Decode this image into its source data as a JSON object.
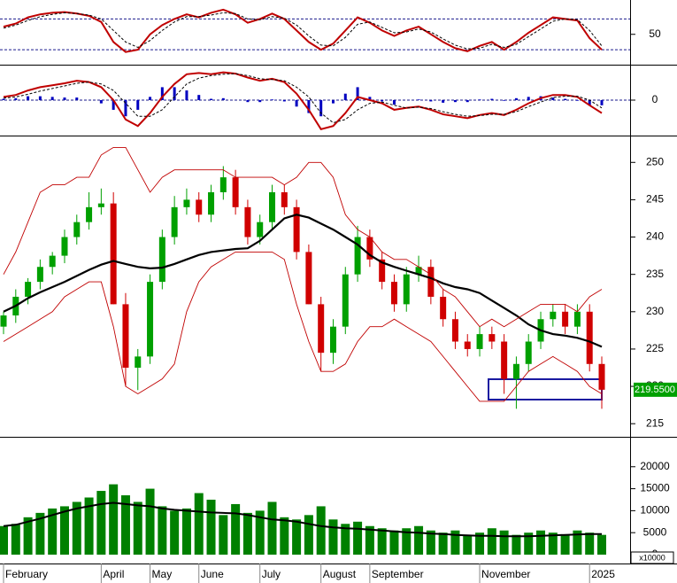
{
  "chart_data": [
    {
      "type": "line",
      "ylim": [
        14,
        90
      ],
      "yticks": [
        50
      ],
      "levels": [
        30,
        70
      ],
      "level_color": "#1a1a8c",
      "series": [
        {
          "color": "#c00000",
          "width": 2,
          "dash": false,
          "values": [
            60,
            64,
            72,
            76,
            78,
            79,
            77,
            74,
            66,
            40,
            27,
            30,
            50,
            62,
            70,
            76,
            72,
            78,
            82,
            76,
            65,
            70,
            77,
            70,
            55,
            40,
            30,
            38,
            55,
            72,
            65,
            55,
            48,
            55,
            60,
            50,
            40,
            32,
            28,
            35,
            40,
            30,
            40,
            52,
            62,
            72,
            70,
            68,
            45,
            30
          ]
        },
        {
          "color": "#000000",
          "width": 1,
          "dash": true,
          "values": [
            58,
            62,
            68,
            73,
            76,
            78,
            77,
            75,
            70,
            55,
            40,
            33,
            42,
            55,
            66,
            73,
            73,
            75,
            78,
            77,
            70,
            69,
            73,
            71,
            62,
            48,
            36,
            35,
            46,
            63,
            66,
            59,
            52,
            53,
            57,
            53,
            44,
            36,
            31,
            32,
            37,
            33,
            37,
            47,
            57,
            67,
            70,
            69,
            55,
            35
          ]
        }
      ]
    },
    {
      "type": "line",
      "ylim": [
        -4.8,
        4.8
      ],
      "yticks": [
        0
      ],
      "grid": true,
      "series": [
        {
          "color": "#0000c0",
          "width": 3,
          "bar": true,
          "values": [
            0.2,
            0.3,
            0.6,
            0.6,
            0.5,
            0.4,
            0.4,
            0,
            -0.5,
            -1.5,
            -2.5,
            -1.5,
            0.5,
            2,
            2,
            1.5,
            0.8,
            0.2,
            0.3,
            0,
            -0.3,
            -0.3,
            0.1,
            -0.2,
            -1,
            -2,
            -2.5,
            -0.5,
            1,
            2,
            0.5,
            -0.2,
            -0.7,
            0,
            0.1,
            -0.2,
            -0.4,
            -0.3,
            -0.3,
            0.1,
            0.2,
            -0.1,
            0.3,
            0.5,
            0.6,
            0.4,
            0.2,
            -0.1,
            -0.8,
            -0.8
          ]
        },
        {
          "color": "#c00000",
          "width": 2,
          "dash": false,
          "values": [
            0.5,
            0.8,
            1.5,
            2,
            2.3,
            2.6,
            3,
            2.8,
            2,
            0,
            -3,
            -4,
            -2,
            0.5,
            2.5,
            4,
            4.2,
            4,
            4.3,
            4.1,
            3.5,
            3,
            3.3,
            2.8,
            1,
            -1.5,
            -4.5,
            -4,
            -2,
            0.5,
            0,
            -0.5,
            -1.5,
            -1.2,
            -1,
            -1.5,
            -2.2,
            -2.5,
            -2.8,
            -2.3,
            -2,
            -2.3,
            -1.5,
            -0.5,
            0.3,
            0.8,
            0.8,
            0.5,
            -0.8,
            -2
          ]
        },
        {
          "color": "#000000",
          "width": 1,
          "dash": true,
          "values": [
            0.3,
            0.5,
            0.9,
            1.4,
            1.8,
            2.2,
            2.6,
            2.8,
            2.5,
            1.5,
            -0.5,
            -2.5,
            -2.5,
            -1.5,
            0.5,
            2.5,
            3.4,
            3.8,
            4,
            4.1,
            3.8,
            3.3,
            3.2,
            3,
            2,
            0.5,
            -2,
            -3.5,
            -3,
            -1.5,
            -0.5,
            -0.3,
            -0.8,
            -1.2,
            -1.1,
            -1.3,
            -1.8,
            -2.2,
            -2.5,
            -2.4,
            -2.2,
            -2.2,
            -1.8,
            -1,
            -0.3,
            0.4,
            0.6,
            0.6,
            0,
            -1.2
          ]
        }
      ]
    },
    {
      "type": "candlestick",
      "ylim": [
        213.6,
        253.0
      ],
      "yticks": [
        215,
        220,
        225,
        230,
        235,
        240,
        245,
        250
      ],
      "up_color": "#00a000",
      "down_color": "#d00000",
      "last_price_label": "219.5500",
      "last_label_color": "#00a000",
      "open": [
        228,
        229.5,
        232,
        234,
        236,
        237.5,
        240,
        242,
        244,
        244.5,
        231,
        222.5,
        224,
        234,
        240,
        244,
        245,
        243,
        246,
        248,
        244,
        240,
        242,
        246,
        244,
        238,
        231,
        224.5,
        228,
        235,
        240,
        237,
        234,
        231,
        235,
        236,
        232,
        229,
        226,
        225,
        227,
        226,
        221,
        223,
        226,
        229,
        230,
        228,
        230,
        223
      ],
      "high": [
        230,
        233,
        234.5,
        237,
        238,
        241,
        243,
        246,
        246.5,
        246,
        232.5,
        225,
        235,
        241,
        245.5,
        246.5,
        246,
        247,
        249.5,
        249,
        245,
        243,
        247,
        247,
        245,
        239,
        232,
        229,
        236,
        241.5,
        241,
        238,
        235,
        236,
        237.5,
        237,
        233,
        230,
        227,
        228,
        228,
        227,
        224,
        227,
        230,
        231,
        231,
        231,
        231,
        224
      ],
      "low": [
        227,
        228.5,
        231,
        233,
        235,
        236.5,
        239,
        241,
        243,
        231,
        220,
        219.5,
        223,
        233,
        239,
        243,
        242,
        242,
        245,
        243,
        239,
        239,
        241,
        243,
        237,
        231,
        222,
        223,
        227,
        234,
        236,
        233,
        230,
        230,
        234,
        231,
        228,
        225,
        224,
        224,
        225,
        219,
        217,
        222,
        225,
        228,
        227,
        227,
        222,
        217
      ],
      "close": [
        229.5,
        232,
        234,
        236,
        237.5,
        240,
        242,
        244,
        244.5,
        231,
        222.5,
        224,
        234,
        240,
        244,
        245,
        243,
        246,
        248,
        244,
        240,
        242,
        246,
        244,
        238,
        231,
        224.5,
        228,
        235,
        240,
        237,
        234,
        231,
        235,
        236,
        232,
        229,
        226,
        225,
        227,
        226,
        221,
        223,
        226,
        229,
        230,
        228,
        230,
        223,
        219.55
      ],
      "series": [
        {
          "color": "#000000",
          "width": 2.2,
          "values": [
            230,
            230.8,
            231.8,
            232.6,
            233.3,
            234,
            234.8,
            235.6,
            236.3,
            236.8,
            236.4,
            236,
            235.8,
            235.9,
            236.4,
            237,
            237.6,
            238,
            238.2,
            238.4,
            238.5,
            239.5,
            241,
            242.5,
            243,
            242.6,
            241.8,
            241,
            240,
            239,
            237.6,
            236.6,
            236,
            235.5,
            235,
            234.5,
            233.8,
            233.3,
            233,
            232.5,
            231.5,
            230.5,
            229.5,
            228.3,
            227.5,
            227,
            226.8,
            226.5,
            226,
            225.3
          ]
        },
        {
          "color": "#c00000",
          "width": 0.9,
          "values": [
            235,
            238,
            242,
            246,
            247,
            247,
            248,
            248,
            251,
            252,
            252,
            249,
            246,
            248,
            249,
            249,
            249,
            249,
            249,
            248,
            248,
            248,
            248,
            247,
            248,
            250,
            250,
            248,
            243,
            241,
            240,
            238,
            237,
            237,
            236,
            235,
            233,
            232,
            230,
            228,
            229,
            228,
            229,
            230,
            231,
            231,
            231,
            230,
            232,
            233
          ]
        },
        {
          "color": "#c00000",
          "width": 0.9,
          "values": [
            226,
            227,
            228,
            229,
            230,
            232,
            233,
            234,
            234,
            228,
            220,
            219,
            220,
            221,
            223,
            230,
            234,
            236,
            237,
            238,
            238,
            238,
            238,
            237,
            231,
            226,
            222,
            222,
            223,
            226,
            228,
            228,
            229,
            228,
            227,
            226,
            224,
            222,
            220,
            218,
            218,
            218,
            220,
            222,
            223,
            224,
            223,
            222,
            220,
            219
          ]
        }
      ]
    },
    {
      "type": "bar",
      "ylim": [
        0,
        26000
      ],
      "yticks": [
        0,
        5000,
        10000,
        15000,
        20000
      ],
      "unit": "x10000",
      "color": "#008000",
      "categories": [
        "February",
        null,
        null,
        null,
        null,
        null,
        null,
        null,
        "April",
        null,
        null,
        null,
        "May",
        null,
        null,
        null,
        "June",
        null,
        null,
        null,
        null,
        "July",
        null,
        null,
        null,
        null,
        "August",
        null,
        null,
        null,
        "September",
        null,
        null,
        null,
        null,
        null,
        null,
        null,
        null,
        "November",
        null,
        null,
        null,
        null,
        null,
        null,
        null,
        null,
        "2025",
        null
      ],
      "values": [
        6500,
        7000,
        8500,
        9500,
        10500,
        11000,
        12000,
        13000,
        14500,
        16000,
        13500,
        12000,
        15000,
        11000,
        10000,
        10500,
        14000,
        12500,
        9000,
        11500,
        9500,
        10000,
        12000,
        8500,
        8000,
        9000,
        11000,
        8000,
        7000,
        7500,
        6500,
        6000,
        5500,
        6000,
        6500,
        5500,
        5000,
        5500,
        4500,
        5000,
        6000,
        5500,
        4500,
        5000,
        5500,
        5000,
        4500,
        5500,
        5000,
        4500
      ],
      "series": [
        {
          "color": "#000000",
          "width": 2,
          "values": [
            6500,
            6800,
            7500,
            8200,
            9000,
            9800,
            10500,
            11000,
            11500,
            11800,
            11500,
            11200,
            11000,
            10500,
            10200,
            10000,
            9800,
            9600,
            9500,
            9400,
            9000,
            8500,
            8000,
            7800,
            7500,
            7000,
            6500,
            6200,
            6000,
            5900,
            5700,
            5500,
            5300,
            5100,
            5000,
            4800,
            4700,
            4500,
            4400,
            4300,
            4300,
            4200,
            4200,
            4200,
            4300,
            4400,
            4500,
            4600,
            4700,
            4700
          ]
        }
      ]
    }
  ]
}
